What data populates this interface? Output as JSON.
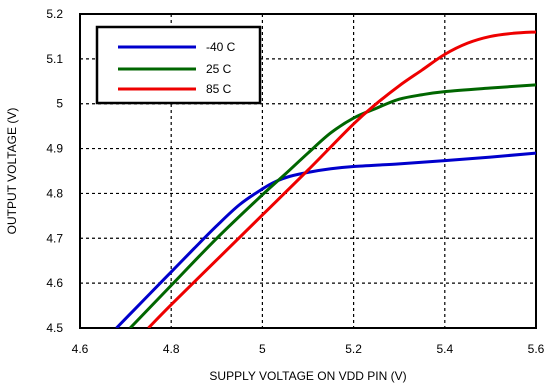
{
  "chart_data": {
    "type": "line",
    "title": "",
    "xlabel": "SUPPLY VOLTAGE ON VDD PIN  (V)",
    "ylabel": "OUTPUT VOLTAGE (V)",
    "xlim": [
      4.6,
      5.6
    ],
    "ylim": [
      4.5,
      5.2
    ],
    "x_ticks": [
      "4.6",
      "4.8",
      "5",
      "5.2",
      "5.4",
      "5.6"
    ],
    "y_ticks": [
      "4.5",
      "4.6",
      "4.7",
      "4.8",
      "4.9",
      "5",
      "5.1",
      "5.2"
    ],
    "x_tick_values": [
      4.6,
      4.8,
      5.0,
      5.2,
      5.4,
      5.6
    ],
    "y_tick_values": [
      4.5,
      4.6,
      4.7,
      4.8,
      4.9,
      5.0,
      5.1,
      5.2
    ],
    "grid": true,
    "legend_position": "top-left",
    "series": [
      {
        "name": "-40 C",
        "color": "#0000cc",
        "x": [
          4.68,
          4.75,
          4.8,
          4.85,
          4.9,
          4.95,
          5.0,
          5.03,
          5.06,
          5.1,
          5.15,
          5.2,
          5.3,
          5.4,
          5.5,
          5.6
        ],
        "y": [
          4.5,
          4.573,
          4.625,
          4.677,
          4.728,
          4.775,
          4.81,
          4.827,
          4.838,
          4.847,
          4.855,
          4.86,
          4.866,
          4.873,
          4.881,
          4.89
        ]
      },
      {
        "name": "25 C",
        "color": "#006600",
        "x": [
          4.71,
          4.8,
          4.9,
          5.0,
          5.05,
          5.1,
          5.15,
          5.2,
          5.25,
          5.3,
          5.35,
          5.4,
          5.5,
          5.6
        ],
        "y": [
          4.5,
          4.595,
          4.7,
          4.797,
          4.843,
          4.89,
          4.935,
          4.968,
          4.99,
          5.01,
          5.02,
          5.027,
          5.035,
          5.042
        ]
      },
      {
        "name": "85 C",
        "color": "#ee0000",
        "x": [
          4.75,
          4.8,
          4.9,
          5.0,
          5.1,
          5.2,
          5.25,
          5.3,
          5.35,
          5.4,
          5.45,
          5.5,
          5.55,
          5.6
        ],
        "y": [
          4.5,
          4.552,
          4.652,
          4.752,
          4.852,
          4.955,
          5.0,
          5.04,
          5.075,
          5.11,
          5.135,
          5.15,
          5.157,
          5.16
        ]
      }
    ]
  }
}
